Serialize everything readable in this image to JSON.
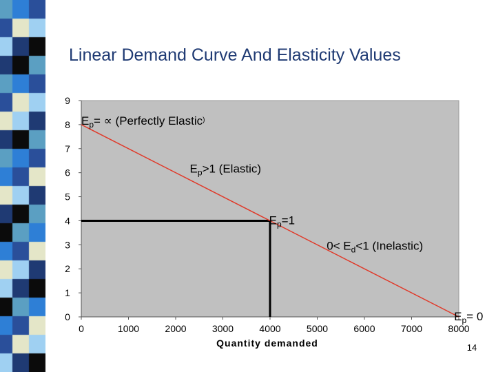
{
  "slide": {
    "title": "Linear Demand Curve And Elasticity Values",
    "page_number": "14"
  },
  "colors": {
    "plot_background": "#c0c0c0",
    "demand_line": "#e03a2a",
    "strip_palette": [
      "#5b9fc2",
      "#1f3a73",
      "#e4e6c8",
      "#2e7fd6",
      "#0b0b0b",
      "#9fd0f2",
      "#2a4f9a"
    ]
  },
  "chart_data": {
    "type": "line",
    "title": "",
    "xlabel": "Quantity demanded",
    "ylabel": "",
    "xlim": [
      0,
      8000
    ],
    "ylim": [
      0,
      9
    ],
    "x_ticks": [
      0,
      1000,
      2000,
      3000,
      4000,
      5000,
      6000,
      7000,
      8000
    ],
    "y_ticks": [
      0,
      1,
      2,
      3,
      4,
      5,
      6,
      7,
      8,
      9
    ],
    "grid": false,
    "series": [
      {
        "points": [
          [
            0,
            8
          ],
          [
            8000,
            0
          ]
        ]
      }
    ],
    "reference_lines": [
      {
        "points": [
          [
            0,
            4
          ],
          [
            4000,
            4
          ]
        ]
      },
      {
        "points": [
          [
            4000,
            4
          ],
          [
            4000,
            0
          ]
        ]
      }
    ],
    "annotations": [
      {
        "x": 0,
        "y": 8,
        "parts": [
          [
            "E",
            ""
          ],
          [
            "p",
            "sub"
          ],
          [
            "= ∝ (Perfectly  Elastic",
            ""
          ],
          [
            ")",
            "small"
          ]
        ]
      },
      {
        "x": 2300,
        "y": 6,
        "parts": [
          [
            "E",
            ""
          ],
          [
            "p",
            "sub"
          ],
          [
            ">1 (Elastic)",
            ""
          ]
        ]
      },
      {
        "x": 3980,
        "y": 3.85,
        "parts": [
          [
            "E",
            ""
          ],
          [
            "p",
            "sub"
          ],
          [
            "=1",
            ""
          ]
        ]
      },
      {
        "x": 5200,
        "y": 2.8,
        "parts": [
          [
            "0< E",
            ""
          ],
          [
            "d",
            "sub"
          ],
          [
            "<1 (Inelastic)",
            ""
          ]
        ]
      },
      {
        "x": 7900,
        "y": -0.15,
        "parts": [
          [
            "E",
            ""
          ],
          [
            "p",
            "sub"
          ],
          [
            "= 0",
            ""
          ]
        ]
      }
    ]
  }
}
